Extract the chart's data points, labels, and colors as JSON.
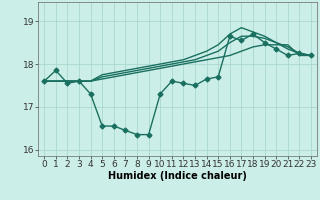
{
  "xlabel": "Humidex (Indice chaleur)",
  "background_color": "#cceee8",
  "grid_color": "#aad8d0",
  "line_color": "#1a7060",
  "x_values": [
    0,
    1,
    2,
    3,
    4,
    5,
    6,
    7,
    8,
    9,
    10,
    11,
    12,
    13,
    14,
    15,
    16,
    17,
    18,
    19,
    20,
    21,
    22,
    23
  ],
  "y_main": [
    17.6,
    17.85,
    17.55,
    17.6,
    17.3,
    16.55,
    16.55,
    16.45,
    16.35,
    16.35,
    17.3,
    17.6,
    17.55,
    17.5,
    17.65,
    17.7,
    18.65,
    18.55,
    18.7,
    18.5,
    18.35,
    18.2,
    18.25,
    18.2
  ],
  "y_line2": [
    17.6,
    17.6,
    17.6,
    17.6,
    17.6,
    17.65,
    17.7,
    17.75,
    17.8,
    17.85,
    17.9,
    17.95,
    18.0,
    18.05,
    18.1,
    18.15,
    18.2,
    18.3,
    18.4,
    18.45,
    18.45,
    18.45,
    18.2,
    18.2
  ],
  "y_line3": [
    17.6,
    17.6,
    17.6,
    17.6,
    17.6,
    17.7,
    17.75,
    17.8,
    17.85,
    17.9,
    17.95,
    18.0,
    18.05,
    18.1,
    18.2,
    18.3,
    18.5,
    18.65,
    18.65,
    18.6,
    18.5,
    18.4,
    18.25,
    18.2
  ],
  "y_line4": [
    17.6,
    17.6,
    17.6,
    17.6,
    17.6,
    17.75,
    17.8,
    17.85,
    17.9,
    17.95,
    18.0,
    18.05,
    18.1,
    18.2,
    18.3,
    18.45,
    18.7,
    18.85,
    18.75,
    18.65,
    18.5,
    18.35,
    18.25,
    18.2
  ],
  "ylim": [
    15.85,
    19.45
  ],
  "yticks": [
    16,
    17,
    18,
    19
  ],
  "xticks": [
    0,
    1,
    2,
    3,
    4,
    5,
    6,
    7,
    8,
    9,
    10,
    11,
    12,
    13,
    14,
    15,
    16,
    17,
    18,
    19,
    20,
    21,
    22,
    23
  ],
  "marker": "D",
  "marker_size": 2.5,
  "linewidth": 1.0,
  "xlabel_fontsize": 7,
  "tick_fontsize": 6.5
}
